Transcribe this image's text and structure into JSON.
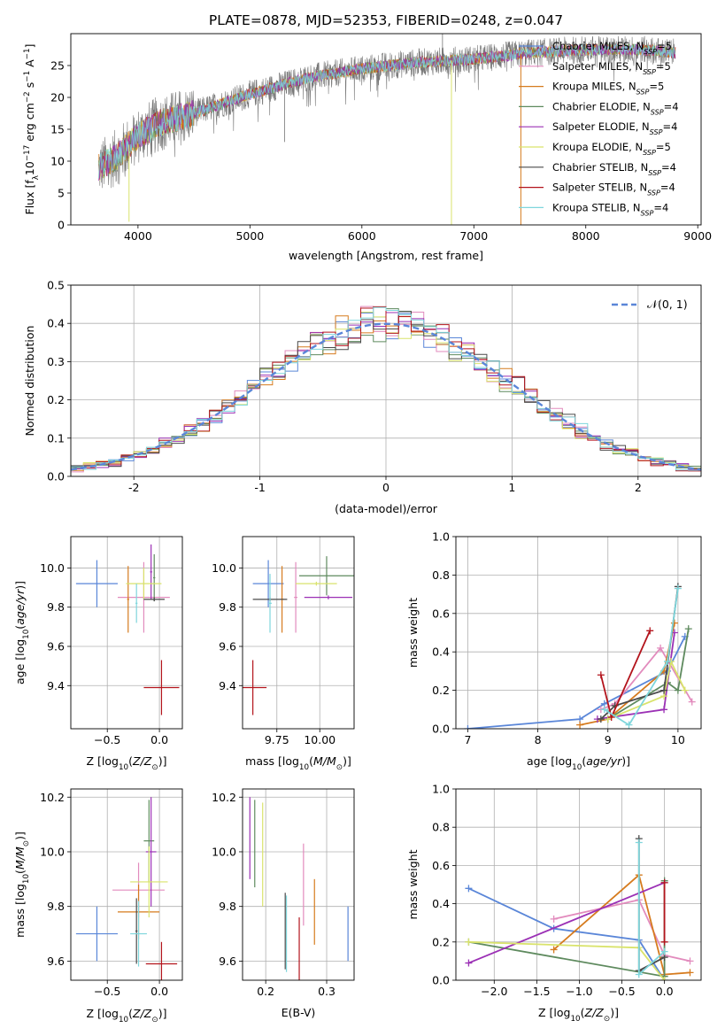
{
  "figure_title": "PLATE=0878, MJD=52353, FIBERID=0248, z=0.047",
  "colors": {
    "Chabrier MILES": "#5a86d8",
    "Salpeter MILES": "#e28bbd",
    "Kroupa MILES": "#d67b1e",
    "Chabrier ELODIE": "#5e8a5e",
    "Salpeter ELODIE": "#9b30b5",
    "Kroupa ELODIE": "#d9e36b",
    "Chabrier STELIB": "#4a4a4a",
    "Salpeter STELIB": "#b3141c",
    "Kroupa STELIB": "#7fd6dc",
    "normal": "#5a86d8"
  },
  "chart_data": [
    {
      "id": "spectrum",
      "type": "line",
      "xlabel": "wavelength [Angstrom, rest frame]",
      "ylabel": "Flux [f_λ10^-17 erg cm^-2 s^-1 A^-1]",
      "xlim": [
        3400,
        9030
      ],
      "ylim": [
        0,
        30
      ],
      "xticks": [
        4000,
        5000,
        6000,
        7000,
        8000,
        9000
      ],
      "yticks": [
        0,
        5,
        10,
        15,
        20,
        25
      ],
      "legend_position": "right",
      "legend": [
        {
          "name": "Chabrier MILES",
          "nssp": "5"
        },
        {
          "name": "Salpeter MILES",
          "nssp": "5"
        },
        {
          "name": "Kroupa MILES",
          "nssp": "5"
        },
        {
          "name": "Chabrier ELODIE",
          "nssp": "4"
        },
        {
          "name": "Salpeter ELODIE",
          "nssp": "4"
        },
        {
          "name": "Kroupa ELODIE",
          "nssp": "5"
        },
        {
          "name": "Chabrier STELIB",
          "nssp": "4"
        },
        {
          "name": "Salpeter STELIB",
          "nssp": "4"
        },
        {
          "name": "Kroupa STELIB",
          "nssp": "4"
        }
      ],
      "continuum": {
        "x": [
          3650,
          3800,
          4000,
          4200,
          4500,
          5000,
          5500,
          6000,
          6500,
          7000,
          7500,
          8000,
          8500,
          8800
        ],
        "y": [
          9,
          10.5,
          14,
          16,
          17.5,
          20.5,
          23,
          24.5,
          25.5,
          26,
          27,
          27.5,
          27.5,
          27
        ]
      },
      "drops": [
        {
          "x": 3920,
          "y": 0.5
        },
        {
          "x": 6800,
          "y": 0
        },
        {
          "x": 7420,
          "y": 0
        }
      ],
      "spikes": [
        {
          "x": 5310,
          "y": 13
        },
        {
          "x": 6720,
          "y": 30
        }
      ]
    },
    {
      "id": "residuals",
      "type": "histogram",
      "xlabel": "(data-model)/error",
      "ylabel": "Normed distribution",
      "xlim": [
        -2.5,
        2.5
      ],
      "ylim": [
        0,
        0.5
      ],
      "xticks": [
        -2,
        -1,
        0,
        1,
        2
      ],
      "yticks": [
        0.0,
        0.1,
        0.2,
        0.3,
        0.4,
        0.5
      ],
      "grid": true,
      "legend_position": "top-right",
      "legend_label": "𝒩(0, 1)",
      "bin_width": 0.1
    },
    {
      "id": "age_vs_Z",
      "type": "scatter",
      "xlabel": "Z [log10(Z/Z⊙)]",
      "ylabel": "age  [log10(age/yr)]",
      "xlim": [
        -0.85,
        0.22
      ],
      "ylim": [
        9.18,
        10.16
      ],
      "xticks": [
        -0.5,
        0.0
      ],
      "yticks": [
        9.4,
        9.6,
        9.8,
        10.0
      ],
      "grid": true,
      "points": [
        {
          "model": "Chabrier MILES",
          "x": -0.6,
          "xerr": 0.2,
          "y": 9.92,
          "yerr": 0.12
        },
        {
          "model": "Salpeter MILES",
          "x": -0.15,
          "xerr": 0.25,
          "y": 9.85,
          "yerr": 0.18
        },
        {
          "model": "Kroupa MILES",
          "x": -0.3,
          "xerr": 0.01,
          "y": 9.84,
          "yerr": 0.17
        },
        {
          "model": "Chabrier ELODIE",
          "x": -0.05,
          "xerr": 0.01,
          "y": 9.95,
          "yerr": 0.12
        },
        {
          "model": "Salpeter ELODIE",
          "x": -0.08,
          "xerr": 0.01,
          "y": 9.98,
          "yerr": 0.14
        },
        {
          "model": "Kroupa ELODIE",
          "x": -0.15,
          "xerr": 0.17,
          "y": 9.92,
          "yerr": 0.08
        },
        {
          "model": "Chabrier STELIB",
          "x": -0.05,
          "xerr": 0.1,
          "y": 9.84,
          "yerr": 0.01
        },
        {
          "model": "Salpeter STELIB",
          "x": 0.02,
          "xerr": 0.17,
          "y": 9.39,
          "yerr": 0.14
        },
        {
          "model": "Kroupa STELIB",
          "x": -0.22,
          "xerr": 0.01,
          "y": 9.82,
          "yerr": 0.1
        }
      ]
    },
    {
      "id": "age_vs_mass",
      "type": "scatter",
      "xlabel": "mass [log10(M/M⊙)]",
      "ylabel": "",
      "xlim": [
        9.55,
        10.2
      ],
      "ylim": [
        9.18,
        10.16
      ],
      "xticks": [
        9.75,
        10.0
      ],
      "yticks": [
        9.4,
        9.6,
        9.8,
        10.0
      ],
      "grid": true,
      "points": [
        {
          "model": "Chabrier MILES",
          "x": 9.7,
          "xerr": 0.09,
          "y": 9.92,
          "yerr": 0.12
        },
        {
          "model": "Salpeter MILES",
          "x": 9.86,
          "xerr": 0.01,
          "y": 9.85,
          "yerr": 0.18
        },
        {
          "model": "Kroupa MILES",
          "x": 9.78,
          "xerr": 0.01,
          "y": 9.84,
          "yerr": 0.17
        },
        {
          "model": "Chabrier ELODIE",
          "x": 10.04,
          "xerr": 0.16,
          "y": 9.96,
          "yerr": 0.1
        },
        {
          "model": "Salpeter ELODIE",
          "x": 10.05,
          "xerr": 0.14,
          "y": 9.85,
          "yerr": 0.01
        },
        {
          "model": "Kroupa ELODIE",
          "x": 9.98,
          "xerr": 0.12,
          "y": 9.92,
          "yerr": 0.01
        },
        {
          "model": "Chabrier STELIB",
          "x": 9.71,
          "xerr": 0.1,
          "y": 9.84,
          "yerr": 0.01
        },
        {
          "model": "Salpeter STELIB",
          "x": 9.61,
          "xerr": 0.08,
          "y": 9.39,
          "yerr": 0.14
        },
        {
          "model": "Kroupa STELIB",
          "x": 9.71,
          "xerr": 0.01,
          "y": 9.82,
          "yerr": 0.15
        }
      ]
    },
    {
      "id": "weight_vs_age",
      "type": "line",
      "xlabel": "age  [log10(age/yr)]",
      "ylabel": "mass weight",
      "xlim": [
        6.83,
        10.33
      ],
      "ylim": [
        0,
        1
      ],
      "xticks": [
        7,
        8,
        9,
        10
      ],
      "yticks": [
        0.0,
        0.2,
        0.4,
        0.6,
        0.8,
        1.0
      ],
      "grid": true,
      "series": [
        {
          "model": "Chabrier MILES",
          "x": [
            7.0,
            8.6,
            8.95,
            9.85,
            10.1
          ],
          "y": [
            0.0,
            0.05,
            0.13,
            0.3,
            0.48
          ]
        },
        {
          "model": "Salpeter MILES",
          "x": [
            8.9,
            9.1,
            9.75,
            10.2
          ],
          "y": [
            0.1,
            0.13,
            0.42,
            0.14
          ]
        },
        {
          "model": "Kroupa MILES",
          "x": [
            8.6,
            9.0,
            9.8,
            9.95
          ],
          "y": [
            0.02,
            0.05,
            0.3,
            0.55
          ]
        },
        {
          "model": "Chabrier ELODIE",
          "x": [
            9.0,
            9.85,
            10.0,
            10.15
          ],
          "y": [
            0.05,
            0.24,
            0.2,
            0.52
          ]
        },
        {
          "model": "Salpeter ELODIE",
          "x": [
            8.85,
            9.8,
            9.95
          ],
          "y": [
            0.05,
            0.1,
            0.5
          ]
        },
        {
          "model": "Kroupa ELODIE",
          "x": [
            9.0,
            9.8,
            9.9,
            10.1
          ],
          "y": [
            0.05,
            0.17,
            0.35,
            0.2
          ]
        },
        {
          "model": "Chabrier STELIB",
          "x": [
            8.9,
            9.1,
            9.8,
            10.0
          ],
          "y": [
            0.05,
            0.12,
            0.2,
            0.74
          ]
        },
        {
          "model": "Salpeter STELIB",
          "x": [
            8.9,
            9.05,
            9.6
          ],
          "y": [
            0.28,
            0.06,
            0.51
          ]
        },
        {
          "model": "Kroupa STELIB",
          "x": [
            8.95,
            9.3,
            9.85,
            10.0
          ],
          "y": [
            0.1,
            0.02,
            0.35,
            0.73
          ]
        }
      ]
    },
    {
      "id": "mass_vs_Z",
      "type": "scatter",
      "xlabel": "Z [log10(Z/Z⊙)]",
      "ylabel": "mass [log10(M/M⊙)]",
      "xlim": [
        -0.85,
        0.22
      ],
      "ylim": [
        9.53,
        10.23
      ],
      "xticks": [
        -0.5,
        0.0
      ],
      "yticks": [
        9.6,
        9.8,
        10.0,
        10.2
      ],
      "grid": true,
      "points": [
        {
          "model": "Chabrier MILES",
          "x": -0.6,
          "xerr": 0.2,
          "y": 9.7,
          "yerr": 0.1
        },
        {
          "model": "Salpeter MILES",
          "x": -0.2,
          "xerr": 0.25,
          "y": 9.86,
          "yerr": 0.1
        },
        {
          "model": "Kroupa MILES",
          "x": -0.2,
          "xerr": 0.2,
          "y": 9.78,
          "yerr": 0.1
        },
        {
          "model": "Chabrier ELODIE",
          "x": -0.1,
          "xerr": 0.05,
          "y": 10.04,
          "yerr": 0.15
        },
        {
          "model": "Salpeter ELODIE",
          "x": -0.08,
          "xerr": 0.05,
          "y": 10.0,
          "yerr": 0.2
        },
        {
          "model": "Kroupa ELODIE",
          "x": -0.1,
          "xerr": 0.18,
          "y": 9.89,
          "yerr": 0.13
        },
        {
          "model": "Chabrier STELIB",
          "x": -0.22,
          "xerr": 0.01,
          "y": 9.71,
          "yerr": 0.12
        },
        {
          "model": "Salpeter STELIB",
          "x": 0.02,
          "xerr": 0.15,
          "y": 9.59,
          "yerr": 0.08
        },
        {
          "model": "Kroupa STELIB",
          "x": -0.2,
          "xerr": 0.08,
          "y": 9.7,
          "yerr": 0.12
        }
      ]
    },
    {
      "id": "mass_vs_ebv",
      "type": "scatter",
      "xlabel": "E(B-V)",
      "ylabel": "",
      "xlim": [
        0.162,
        0.345
      ],
      "ylim": [
        9.53,
        10.23
      ],
      "xticks": [
        0.2,
        0.3
      ],
      "yticks": [
        9.6,
        9.8,
        10.0,
        10.2
      ],
      "grid": true,
      "points": [
        {
          "model": "Chabrier MILES",
          "x": 0.335,
          "xerr": 0.0,
          "y": 9.7,
          "yerr": 0.1
        },
        {
          "model": "Salpeter MILES",
          "x": 0.262,
          "xerr": 0.0,
          "y": 9.88,
          "yerr": 0.15
        },
        {
          "model": "Kroupa MILES",
          "x": 0.28,
          "xerr": 0.0,
          "y": 9.78,
          "yerr": 0.12
        },
        {
          "model": "Chabrier ELODIE",
          "x": 0.182,
          "xerr": 0.0,
          "y": 10.03,
          "yerr": 0.16
        },
        {
          "model": "Salpeter ELODIE",
          "x": 0.174,
          "xerr": 0.0,
          "y": 10.05,
          "yerr": 0.15
        },
        {
          "model": "Kroupa ELODIE",
          "x": 0.195,
          "xerr": 0.0,
          "y": 9.99,
          "yerr": 0.19
        },
        {
          "model": "Chabrier STELIB",
          "x": 0.232,
          "xerr": 0.0,
          "y": 9.71,
          "yerr": 0.14
        },
        {
          "model": "Salpeter STELIB",
          "x": 0.255,
          "xerr": 0.0,
          "y": 9.59,
          "yerr": 0.17
        },
        {
          "model": "Kroupa STELIB",
          "x": 0.234,
          "xerr": 0.0,
          "y": 9.7,
          "yerr": 0.14
        }
      ]
    },
    {
      "id": "weight_vs_Z",
      "type": "line",
      "xlabel": "Z [log10(Z/Z⊙)]",
      "ylabel": "mass weight",
      "xlim": [
        -2.45,
        0.43
      ],
      "ylim": [
        0,
        1
      ],
      "xticks": [
        -2.0,
        -1.5,
        -1.0,
        -0.5,
        0.0
      ],
      "yticks": [
        0.0,
        0.2,
        0.4,
        0.6,
        0.8,
        1.0
      ],
      "grid": true,
      "series": [
        {
          "model": "Chabrier MILES",
          "x": [
            -2.3,
            -1.3,
            -0.3,
            0.0
          ],
          "y": [
            0.48,
            0.27,
            0.21,
            0.0
          ]
        },
        {
          "model": "Salpeter MILES",
          "x": [
            -1.3,
            -0.3,
            0.0,
            0.3
          ],
          "y": [
            0.32,
            0.42,
            0.13,
            0.1
          ]
        },
        {
          "model": "Kroupa MILES",
          "x": [
            -1.3,
            -0.3,
            0.0,
            0.3
          ],
          "y": [
            0.16,
            0.55,
            0.03,
            0.04
          ]
        },
        {
          "model": "Chabrier ELODIE",
          "x": [
            -2.3,
            0.0,
            0.0
          ],
          "y": [
            0.2,
            0.02,
            0.52
          ]
        },
        {
          "model": "Salpeter ELODIE",
          "x": [
            -2.3,
            0.0
          ],
          "y": [
            0.09,
            0.51
          ]
        },
        {
          "model": "Kroupa ELODIE",
          "x": [
            -2.3,
            -0.3,
            0.0
          ],
          "y": [
            0.2,
            0.17,
            0.0
          ]
        },
        {
          "model": "Chabrier STELIB",
          "x": [
            -0.3,
            -0.3,
            0.0
          ],
          "y": [
            0.74,
            0.05,
            0.12
          ]
        },
        {
          "model": "Salpeter STELIB",
          "x": [
            0.0,
            0.0
          ],
          "y": [
            0.51,
            0.2
          ]
        },
        {
          "model": "Kroupa STELIB",
          "x": [
            -0.3,
            -0.3,
            0.0
          ],
          "y": [
            0.72,
            0.03,
            0.15
          ]
        }
      ]
    }
  ]
}
